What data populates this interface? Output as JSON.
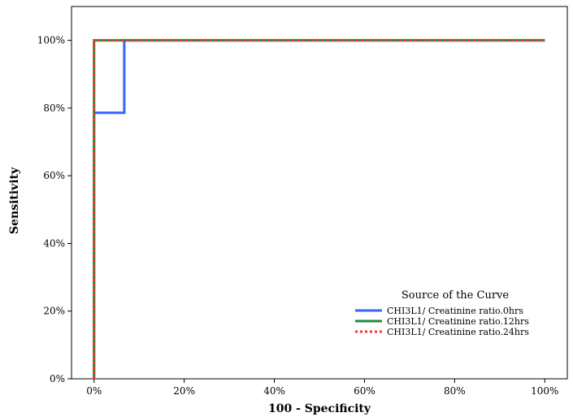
{
  "chart_data": {
    "type": "line",
    "title": "",
    "xlabel": "100 - Specificity",
    "ylabel": "Sensitivity",
    "xlim": [
      -5,
      105
    ],
    "ylim": [
      0,
      110
    ],
    "x_ticks": [
      0,
      20,
      40,
      60,
      80,
      100
    ],
    "y_ticks": [
      0,
      20,
      40,
      60,
      80,
      100
    ],
    "x_tick_labels": [
      "0%",
      "20%",
      "40%",
      "60%",
      "80%",
      "100%"
    ],
    "y_tick_labels": [
      "0%",
      "20%",
      "40%",
      "60%",
      "80%",
      "100%"
    ],
    "grid": false,
    "legend": {
      "title": "Source of the Curve",
      "placement": "bottom-right"
    },
    "series": [
      {
        "name": "CHI3L1/ Creatinine ratio.0hrs",
        "color": "#3366ff",
        "style": "solid",
        "points": [
          [
            0,
            0
          ],
          [
            0,
            78.6
          ],
          [
            6.7,
            78.6
          ],
          [
            6.7,
            100
          ],
          [
            100,
            100
          ]
        ]
      },
      {
        "name": "CHI3L1/ Creatinine ratio.12hrs",
        "color": "#228b3a",
        "style": "solid",
        "points": [
          [
            0,
            0
          ],
          [
            0,
            100
          ],
          [
            100,
            100
          ]
        ]
      },
      {
        "name": "CHI3L1/ Creatinine ratio.24hrs",
        "color": "#ff3333",
        "style": "dotted",
        "points": [
          [
            0,
            0
          ],
          [
            0,
            100
          ],
          [
            100,
            100
          ]
        ]
      }
    ]
  }
}
